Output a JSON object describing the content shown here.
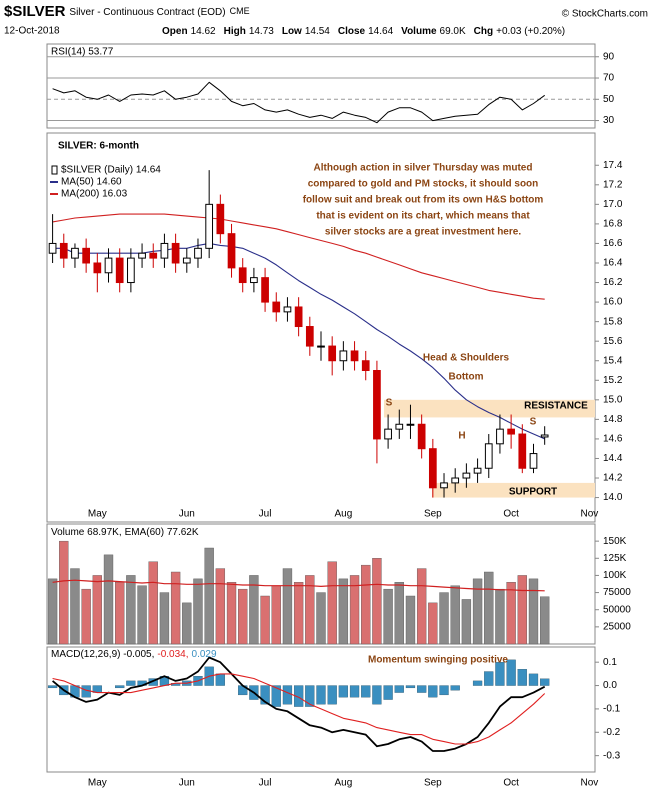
{
  "header": {
    "symbol": "$SILVER",
    "description": "Silver - Continuous Contract (EOD)",
    "exchange": "CME",
    "credit": "© StockCharts.com",
    "date": "12-Oct-2018",
    "quote": [
      [
        "Open",
        "14.62"
      ],
      [
        "High",
        "14.73"
      ],
      [
        "Low",
        "14.54"
      ],
      [
        "Close",
        "14.64"
      ],
      [
        "Volume",
        "69.0K"
      ],
      [
        "Chg",
        "+0.03 (+0.20%)"
      ]
    ]
  },
  "chart_data": [
    {
      "type": "line",
      "name": "RSI(14) 53.77",
      "color": "#000000",
      "values": [
        60,
        56,
        58,
        52,
        50,
        54,
        48,
        54,
        55,
        54,
        58,
        50,
        52,
        55,
        66,
        58,
        48,
        44,
        46,
        40,
        38,
        40,
        36,
        33,
        35,
        32,
        38,
        35,
        33,
        28,
        38,
        42,
        42,
        38,
        30,
        32,
        34,
        35,
        36,
        45,
        52,
        50,
        40,
        46,
        53.77,
        null,
        null,
        null,
        null
      ],
      "ylim": [
        23,
        102
      ],
      "yticks": [
        30,
        50,
        70,
        90
      ],
      "grid": true
    },
    {
      "type": "candlestick",
      "name": "$SILVER (Daily) 14.64",
      "title": "SILVER: 6-month",
      "up_color": "#000000",
      "down_color": "#cc0000",
      "categories": [
        null,
        null,
        null,
        null,
        "May",
        null,
        null,
        null,
        null,
        null,
        null,
        null,
        "Jun",
        null,
        null,
        null,
        null,
        null,
        null,
        "Jul",
        null,
        null,
        null,
        null,
        null,
        null,
        "Aug",
        null,
        null,
        null,
        null,
        null,
        null,
        null,
        "Sep",
        null,
        null,
        null,
        null,
        null,
        null,
        "Oct",
        null,
        null,
        null,
        null,
        null,
        null,
        "Nov"
      ],
      "open": [
        16.5,
        16.6,
        16.45,
        16.55,
        16.4,
        16.3,
        16.45,
        16.2,
        16.45,
        16.5,
        16.45,
        16.6,
        16.4,
        16.45,
        16.55,
        17.0,
        16.7,
        16.35,
        16.2,
        16.25,
        16.0,
        15.9,
        15.95,
        15.75,
        15.55,
        15.55,
        15.4,
        15.5,
        15.4,
        15.3,
        14.6,
        14.7,
        14.75,
        14.75,
        14.5,
        14.1,
        14.15,
        14.2,
        14.25,
        14.3,
        14.55,
        14.7,
        14.65,
        14.3,
        14.62,
        null,
        null,
        null,
        null
      ],
      "high": [
        16.9,
        16.7,
        16.6,
        16.65,
        16.5,
        16.55,
        16.55,
        16.55,
        16.6,
        16.6,
        16.7,
        16.7,
        16.55,
        16.65,
        17.35,
        17.1,
        16.8,
        16.45,
        16.35,
        16.35,
        16.1,
        16.05,
        16.05,
        15.85,
        15.7,
        15.65,
        15.6,
        15.6,
        15.5,
        15.4,
        14.85,
        14.9,
        14.95,
        14.85,
        14.6,
        14.25,
        14.3,
        14.35,
        14.4,
        14.65,
        14.85,
        14.85,
        14.75,
        14.55,
        14.73,
        null,
        null,
        null,
        null
      ],
      "low": [
        16.4,
        16.35,
        16.35,
        16.3,
        16.1,
        16.2,
        16.1,
        16.1,
        16.35,
        16.35,
        16.35,
        16.3,
        16.3,
        16.35,
        16.45,
        16.6,
        16.25,
        16.1,
        16.1,
        15.9,
        15.8,
        15.8,
        15.65,
        15.45,
        15.4,
        15.25,
        15.3,
        15.3,
        15.2,
        14.35,
        14.5,
        14.6,
        14.6,
        14.4,
        14.0,
        14.0,
        14.05,
        14.1,
        14.15,
        14.2,
        14.45,
        14.5,
        14.25,
        14.25,
        14.54,
        null,
        null,
        null,
        null
      ],
      "close": [
        16.6,
        16.45,
        16.55,
        16.4,
        16.3,
        16.45,
        16.2,
        16.45,
        16.5,
        16.45,
        16.6,
        16.4,
        16.45,
        16.55,
        17.0,
        16.7,
        16.35,
        16.2,
        16.25,
        16.0,
        15.9,
        15.95,
        15.75,
        15.55,
        15.55,
        15.4,
        15.5,
        15.4,
        15.3,
        14.6,
        14.7,
        14.75,
        14.75,
        14.5,
        14.1,
        14.15,
        14.2,
        14.25,
        14.3,
        14.55,
        14.7,
        14.65,
        14.3,
        14.45,
        14.64,
        null,
        null,
        null,
        null
      ],
      "series": [
        {
          "name": "MA(50) 14.60",
          "color": "#2a2f8a",
          "values": [
            16.55,
            16.55,
            16.5,
            16.5,
            16.5,
            16.5,
            16.5,
            16.5,
            16.5,
            16.52,
            16.53,
            16.55,
            16.55,
            16.58,
            16.6,
            16.58,
            16.57,
            16.55,
            16.5,
            16.45,
            16.38,
            16.3,
            16.22,
            16.15,
            16.08,
            16.02,
            15.95,
            15.88,
            15.8,
            15.72,
            15.65,
            15.57,
            15.5,
            15.42,
            15.33,
            15.22,
            15.1,
            15.0,
            14.93,
            14.87,
            14.82,
            14.76,
            14.7,
            14.65,
            14.6,
            null,
            null,
            null,
            null
          ]
        },
        {
          "name": "MA(200) 16.03",
          "color": "#d02020",
          "values": [
            16.82,
            16.84,
            16.86,
            16.87,
            16.88,
            16.89,
            16.9,
            16.9,
            16.9,
            16.9,
            16.9,
            16.89,
            16.88,
            16.87,
            16.86,
            16.85,
            16.83,
            16.81,
            16.79,
            16.77,
            16.75,
            16.72,
            16.69,
            16.66,
            16.63,
            16.6,
            16.57,
            16.53,
            16.5,
            16.46,
            16.42,
            16.38,
            16.34,
            16.3,
            16.27,
            16.24,
            16.21,
            16.18,
            16.15,
            16.12,
            16.1,
            16.08,
            16.06,
            16.04,
            16.03,
            null,
            null,
            null,
            null
          ]
        }
      ],
      "ylim": [
        13.75,
        17.73
      ],
      "yticks": [
        {
          "value": 14,
          "label": "14.0"
        },
        14.2,
        14.4,
        14.6,
        14.8,
        {
          "value": 15,
          "label": "15.0"
        },
        15.2,
        15.4,
        15.6,
        15.8,
        {
          "value": 16,
          "label": "16.0"
        },
        16.2,
        16.4,
        16.6,
        16.8,
        {
          "value": 17,
          "label": "17.0"
        },
        17.2,
        17.4
      ],
      "commentary": [
        "Although action in silver Thursday was muted",
        "compared to gold and PM stocks, it should soon",
        "follow suit and break out from its own H&S bottom",
        "that is evident on its chart, which means that",
        "silver stocks are a great investment here."
      ],
      "pattern_title": [
        "Head & Shoulders",
        "Bottom"
      ],
      "pattern_labels": [
        "S",
        "H",
        "S"
      ],
      "resistance": {
        "label": "RESISTANCE",
        "range": [
          14.82,
          15.0
        ]
      },
      "support": {
        "label": "SUPPORT",
        "range": [
          14.0,
          14.15
        ]
      }
    },
    {
      "type": "bar",
      "name": "Volume 68.97K,",
      "up_color": "#8a8a8a",
      "down_color": "#d97070",
      "values": [
        95000,
        150000,
        110000,
        80000,
        100000,
        130000,
        90000,
        100000,
        85000,
        120000,
        75000,
        105000,
        60000,
        95000,
        140000,
        110000,
        90000,
        80000,
        100000,
        70000,
        85000,
        110000,
        90000,
        100000,
        75000,
        120000,
        95000,
        100000,
        115000,
        125000,
        80000,
        90000,
        70000,
        110000,
        60000,
        75000,
        85000,
        65000,
        95000,
        105000,
        80000,
        90000,
        100000,
        95000,
        68970,
        null,
        null,
        null,
        null
      ],
      "series": [
        {
          "name": "EMA(60) 77.62K",
          "color": "#d02020",
          "values": [
            90000,
            92000,
            93000,
            92000,
            91000,
            92000,
            91000,
            90000,
            89000,
            90000,
            88000,
            88000,
            87000,
            87000,
            88000,
            88000,
            87000,
            86000,
            86000,
            85000,
            85000,
            85000,
            85000,
            85000,
            84000,
            85000,
            85000,
            85000,
            86000,
            87000,
            86000,
            86000,
            85000,
            85000,
            84000,
            83000,
            82000,
            81000,
            80000,
            80000,
            79000,
            79000,
            78000,
            78000,
            77620,
            null,
            null,
            null,
            null
          ]
        }
      ],
      "ylim": [
        0,
        175000
      ],
      "yticks": [
        25000,
        50000,
        75000,
        {
          "value": 100000,
          "label": "100K"
        },
        {
          "value": 125000,
          "label": "125K"
        },
        {
          "value": 150000,
          "label": "150K"
        }
      ]
    },
    {
      "type": "macd",
      "annotation": "Momentum swinging positive",
      "categories": [
        null,
        null,
        null,
        null,
        "May",
        null,
        null,
        null,
        null,
        null,
        null,
        null,
        "Jun",
        null,
        null,
        null,
        null,
        null,
        null,
        "Jul",
        null,
        null,
        null,
        null,
        null,
        null,
        "Aug",
        null,
        null,
        null,
        null,
        null,
        null,
        null,
        "Sep",
        null,
        null,
        null,
        null,
        null,
        null,
        "Oct",
        null,
        null,
        null,
        null,
        null,
        null,
        "Nov"
      ],
      "series": [
        {
          "name": "MACD(12,26,9) -0.005,",
          "color": "#000000",
          "values": [
            0.02,
            -0.02,
            -0.05,
            -0.07,
            -0.06,
            -0.03,
            -0.04,
            -0.01,
            0.0,
            0.02,
            0.04,
            0.02,
            0.03,
            0.06,
            0.12,
            0.1,
            0.05,
            0.0,
            -0.03,
            -0.07,
            -0.1,
            -0.11,
            -0.14,
            -0.17,
            -0.18,
            -0.2,
            -0.19,
            -0.2,
            -0.21,
            -0.26,
            -0.25,
            -0.23,
            -0.22,
            -0.24,
            -0.28,
            -0.28,
            -0.27,
            -0.25,
            -0.22,
            -0.16,
            -0.09,
            -0.05,
            -0.05,
            -0.03,
            -0.005,
            null,
            null,
            null,
            null
          ]
        },
        {
          "name": "-0.034,",
          "color": "#e02020",
          "values": [
            0.03,
            0.02,
            0.0,
            -0.02,
            -0.03,
            -0.03,
            -0.03,
            -0.03,
            -0.02,
            -0.01,
            0.0,
            0.01,
            0.01,
            0.02,
            0.04,
            0.05,
            0.05,
            0.04,
            0.03,
            0.01,
            -0.01,
            -0.03,
            -0.05,
            -0.08,
            -0.1,
            -0.12,
            -0.14,
            -0.15,
            -0.16,
            -0.18,
            -0.19,
            -0.2,
            -0.21,
            -0.21,
            -0.23,
            -0.24,
            -0.25,
            -0.25,
            -0.24,
            -0.22,
            -0.19,
            -0.16,
            -0.12,
            -0.08,
            -0.034,
            null,
            null,
            null,
            null
          ]
        },
        {
          "name": "0.029",
          "color": "#3a8fc0",
          "values": [
            -0.01,
            -0.04,
            -0.05,
            -0.05,
            -0.03,
            0.0,
            -0.01,
            0.02,
            0.02,
            0.03,
            0.04,
            0.01,
            0.02,
            0.04,
            0.08,
            0.05,
            0.0,
            -0.04,
            -0.06,
            -0.08,
            -0.09,
            -0.08,
            -0.09,
            -0.09,
            -0.08,
            -0.08,
            -0.05,
            -0.05,
            -0.05,
            -0.08,
            -0.06,
            -0.03,
            -0.01,
            -0.03,
            -0.05,
            -0.04,
            -0.02,
            0.0,
            0.02,
            0.06,
            0.1,
            0.11,
            0.07,
            0.05,
            0.029,
            null,
            null,
            null,
            null
          ]
        }
      ],
      "ylim": [
        -0.37,
        0.165
      ],
      "yticks": [
        0.1,
        {
          "value": 0,
          "label": "0.0"
        },
        -0.1,
        -0.2,
        -0.3
      ]
    }
  ]
}
